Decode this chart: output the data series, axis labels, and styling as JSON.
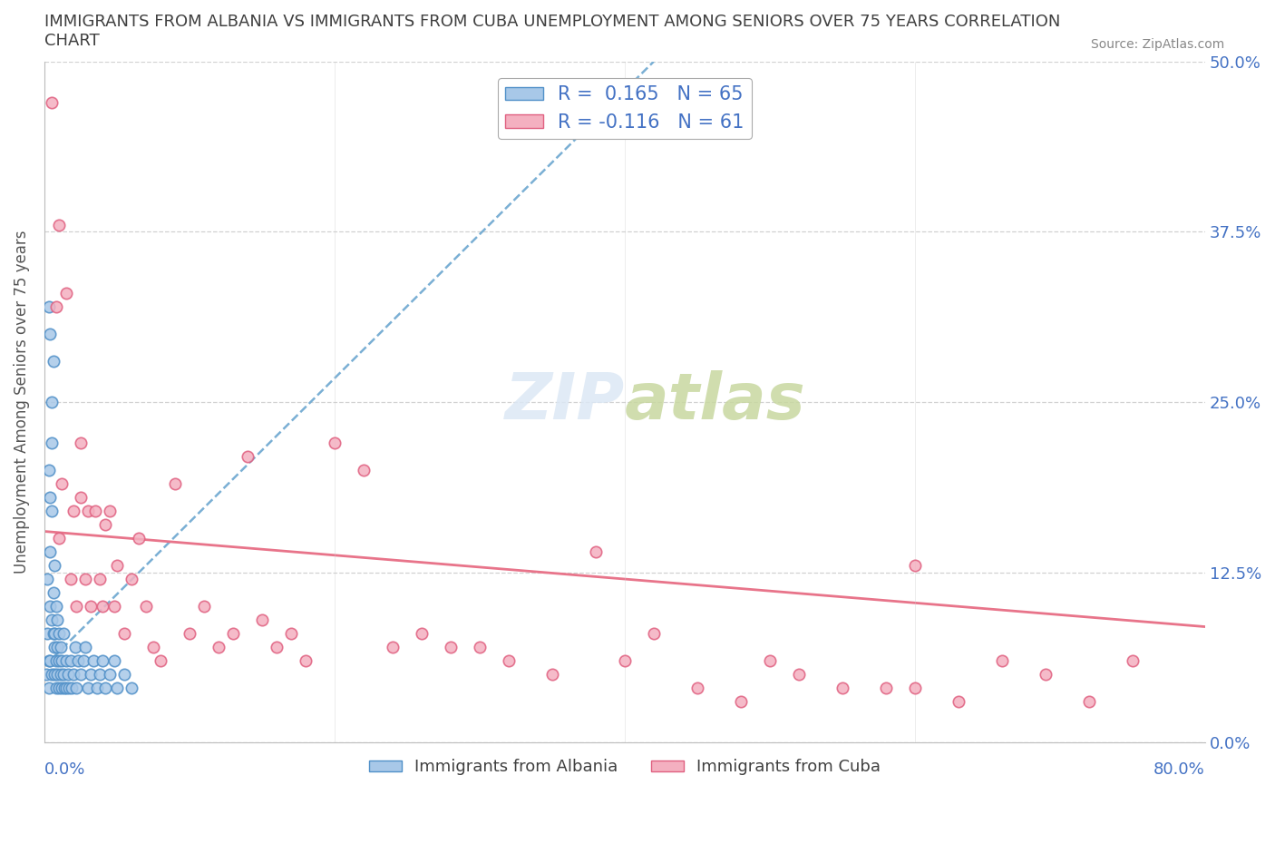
{
  "title": "IMMIGRANTS FROM ALBANIA VS IMMIGRANTS FROM CUBA UNEMPLOYMENT AMONG SENIORS OVER 75 YEARS CORRELATION\nCHART",
  "source": "Source: ZipAtlas.com",
  "ylabel": "Unemployment Among Seniors over 75 years",
  "xlim": [
    0,
    0.8
  ],
  "ylim": [
    0,
    0.5
  ],
  "xticks": [
    0.0,
    0.2,
    0.4,
    0.6,
    0.8
  ],
  "yticks": [
    0.0,
    0.125,
    0.25,
    0.375,
    0.5
  ],
  "xticklabels_left": [
    "0.0%"
  ],
  "xticklabels_right": [
    "80.0%"
  ],
  "yticklabels": [
    "0.0%",
    "12.5%",
    "25.0%",
    "37.5%",
    "50.0%"
  ],
  "albania_color": "#a8c8e8",
  "cuba_color": "#f4b0c0",
  "albania_edge": "#5090c8",
  "cuba_edge": "#e06080",
  "albania_R": 0.165,
  "albania_N": 65,
  "cuba_R": -0.116,
  "cuba_N": 61,
  "albania_line_color": "#7aafd4",
  "cuba_line_color": "#e8748a",
  "background": "#ffffff",
  "grid_color": "#cccccc",
  "title_color": "#404040",
  "tick_color": "#4472c4",
  "legend_label1": "Immigrants from Albania",
  "legend_label2": "Immigrants from Cuba",
  "albania_x": [
    0.001,
    0.002,
    0.002,
    0.003,
    0.003,
    0.003,
    0.004,
    0.004,
    0.004,
    0.004,
    0.005,
    0.005,
    0.005,
    0.005,
    0.006,
    0.006,
    0.006,
    0.007,
    0.007,
    0.007,
    0.007,
    0.008,
    0.008,
    0.008,
    0.009,
    0.009,
    0.009,
    0.01,
    0.01,
    0.01,
    0.011,
    0.011,
    0.012,
    0.012,
    0.013,
    0.013,
    0.014,
    0.015,
    0.015,
    0.016,
    0.017,
    0.018,
    0.019,
    0.02,
    0.021,
    0.022,
    0.023,
    0.025,
    0.027,
    0.028,
    0.03,
    0.032,
    0.034,
    0.036,
    0.038,
    0.04,
    0.042,
    0.045,
    0.048,
    0.05,
    0.055,
    0.06,
    0.003,
    0.004,
    0.005
  ],
  "albania_y": [
    0.05,
    0.08,
    0.12,
    0.04,
    0.06,
    0.2,
    0.14,
    0.18,
    0.06,
    0.1,
    0.22,
    0.17,
    0.05,
    0.09,
    0.11,
    0.08,
    0.28,
    0.07,
    0.13,
    0.05,
    0.08,
    0.06,
    0.1,
    0.04,
    0.09,
    0.05,
    0.07,
    0.08,
    0.04,
    0.06,
    0.07,
    0.05,
    0.06,
    0.04,
    0.08,
    0.05,
    0.04,
    0.06,
    0.04,
    0.05,
    0.04,
    0.06,
    0.04,
    0.05,
    0.07,
    0.04,
    0.06,
    0.05,
    0.06,
    0.07,
    0.04,
    0.05,
    0.06,
    0.04,
    0.05,
    0.06,
    0.04,
    0.05,
    0.06,
    0.04,
    0.05,
    0.04,
    0.32,
    0.3,
    0.25
  ],
  "cuba_x": [
    0.005,
    0.008,
    0.01,
    0.012,
    0.015,
    0.018,
    0.02,
    0.022,
    0.025,
    0.028,
    0.03,
    0.032,
    0.035,
    0.038,
    0.04,
    0.042,
    0.045,
    0.048,
    0.05,
    0.055,
    0.06,
    0.065,
    0.07,
    0.075,
    0.08,
    0.09,
    0.1,
    0.11,
    0.12,
    0.13,
    0.14,
    0.15,
    0.16,
    0.17,
    0.18,
    0.2,
    0.22,
    0.24,
    0.26,
    0.28,
    0.3,
    0.32,
    0.35,
    0.38,
    0.4,
    0.42,
    0.45,
    0.48,
    0.5,
    0.52,
    0.55,
    0.58,
    0.6,
    0.63,
    0.66,
    0.69,
    0.72,
    0.75,
    0.6,
    0.01,
    0.025
  ],
  "cuba_y": [
    0.47,
    0.32,
    0.15,
    0.19,
    0.33,
    0.12,
    0.17,
    0.1,
    0.18,
    0.12,
    0.17,
    0.1,
    0.17,
    0.12,
    0.1,
    0.16,
    0.17,
    0.1,
    0.13,
    0.08,
    0.12,
    0.15,
    0.1,
    0.07,
    0.06,
    0.19,
    0.08,
    0.1,
    0.07,
    0.08,
    0.21,
    0.09,
    0.07,
    0.08,
    0.06,
    0.22,
    0.2,
    0.07,
    0.08,
    0.07,
    0.07,
    0.06,
    0.05,
    0.14,
    0.06,
    0.08,
    0.04,
    0.03,
    0.06,
    0.05,
    0.04,
    0.04,
    0.04,
    0.03,
    0.06,
    0.05,
    0.03,
    0.06,
    0.13,
    0.38,
    0.22
  ],
  "albania_line_x": [
    0.0,
    0.42
  ],
  "albania_line_y": [
    0.056,
    0.5
  ],
  "cuba_line_x": [
    0.0,
    0.8
  ],
  "cuba_line_y": [
    0.155,
    0.085
  ]
}
